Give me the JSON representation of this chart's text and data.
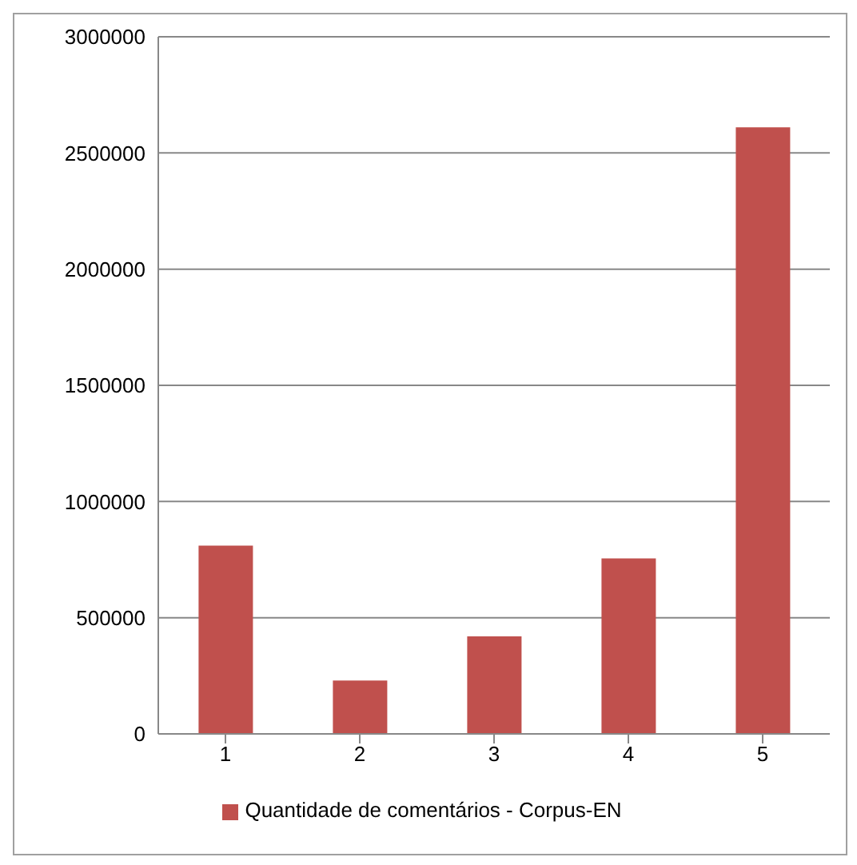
{
  "chart_data": {
    "type": "bar",
    "categories": [
      "1",
      "2",
      "3",
      "4",
      "5"
    ],
    "series": [
      {
        "name": "Quantidade de comentários - Corpus-EN",
        "color": "#c0504d",
        "values": [
          810000,
          230000,
          420000,
          755000,
          2610000
        ]
      }
    ],
    "ylim": [
      0,
      3000000
    ],
    "yticks": [
      0,
      500000,
      1000000,
      1500000,
      2000000,
      2500000,
      3000000
    ],
    "grid": "y",
    "legend": "bottom"
  }
}
